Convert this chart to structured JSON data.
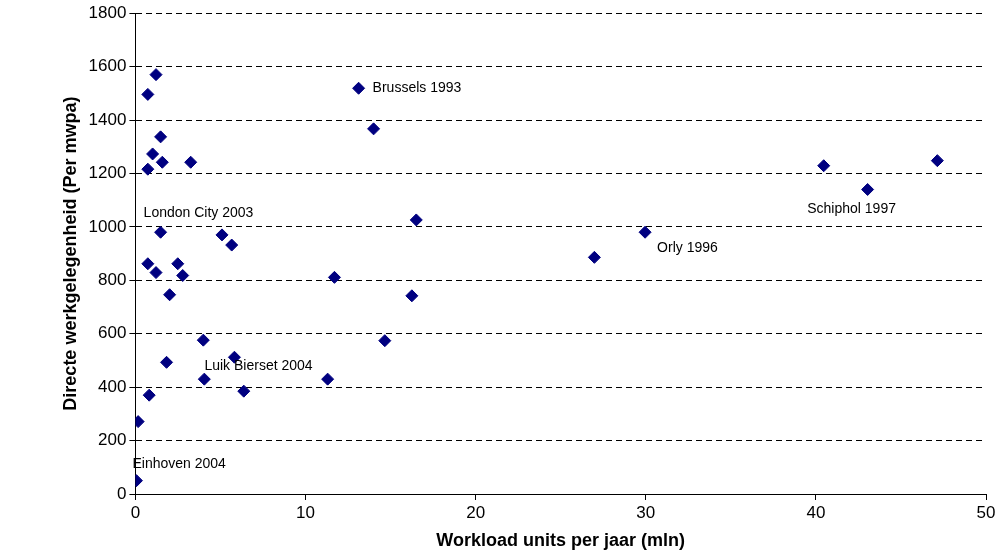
{
  "chart_data": {
    "type": "scatter",
    "xlabel": "Workload units per jaar (mln)",
    "ylabel": "Directe werkgelegenheid (Per mwpa)",
    "x": [
      1.21,
      0.73,
      1.48,
      1.01,
      1.58,
      0.73,
      3.25,
      1.48,
      5.09,
      5.66,
      0.73,
      1.21,
      2.49,
      2.78,
      11.7,
      13.12,
      14.0,
      16.51,
      16.25,
      14.66,
      2.01,
      3.99,
      1.83,
      5.82,
      4.05,
      6.37,
      11.3,
      0.81,
      0.16,
      0.06,
      26.98,
      29.96,
      40.46,
      43.04,
      47.14
    ],
    "values": [
      1570,
      1496,
      1337,
      1273,
      1242,
      1216,
      1242,
      980,
      970,
      932,
      862,
      829,
      862,
      818,
      811,
      1519,
      1367,
      1026,
      742,
      574,
      746,
      576,
      493,
      512,
      430,
      385,
      430,
      370,
      271,
      50,
      886,
      980,
      1229,
      1140,
      1248
    ],
    "color": "#000080",
    "marker": "diamond",
    "xlim": [
      0,
      50
    ],
    "xticks": [
      0,
      10,
      20,
      30,
      40,
      50
    ],
    "ylim": [
      0,
      1800
    ],
    "yticks": [
      0,
      200,
      400,
      600,
      800,
      1000,
      1200,
      1400,
      1600,
      1800
    ],
    "grid": "y",
    "legend": false,
    "annotations": [
      {
        "text": "Brussels 1993",
        "x": 13.12,
        "y": 1519
      },
      {
        "text": "London City 2003",
        "x": 1.48,
        "y": 980
      },
      {
        "text": "Orly 1996",
        "x": 29.96,
        "y": 980
      },
      {
        "text": "Schiphol 1997",
        "x": 43.04,
        "y": 1140
      },
      {
        "text": "Luik Bierset 2004",
        "x": 5.82,
        "y": 512
      },
      {
        "text": "Einhoven 2004",
        "x": 0.06,
        "y": 50
      }
    ]
  }
}
